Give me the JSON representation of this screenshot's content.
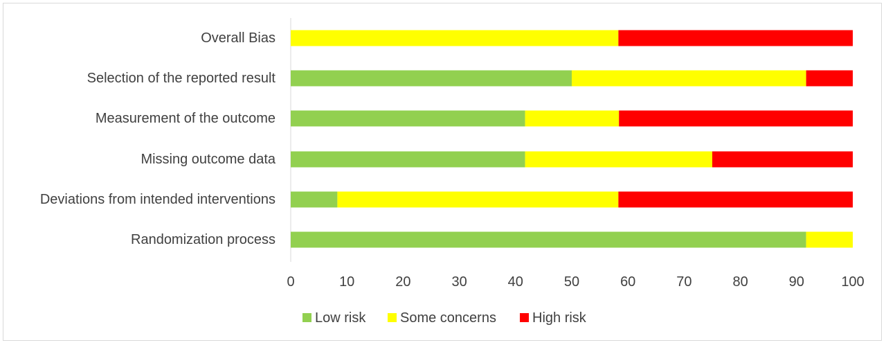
{
  "chart_data": {
    "type": "bar",
    "orientation": "horizontal",
    "stacked": true,
    "categories": [
      "Overall Bias",
      "Selection of the reported result",
      "Measurement of the outcome",
      "Missing outcome data",
      "Deviations from intended interventions",
      "Randomization process"
    ],
    "series": [
      {
        "name": "Low risk",
        "color": "#92d050",
        "values": [
          0,
          50,
          41.7,
          41.7,
          8.3,
          91.7
        ]
      },
      {
        "name": "Some concerns",
        "color": "#ffff00",
        "values": [
          58.3,
          41.7,
          16.7,
          33.3,
          50,
          8.3
        ]
      },
      {
        "name": "High risk",
        "color": "#ff0000",
        "values": [
          41.7,
          8.3,
          41.6,
          25,
          41.7,
          0
        ]
      }
    ],
    "xlim": [
      0,
      100
    ],
    "xticks": [
      "0",
      "10",
      "20",
      "30",
      "40",
      "50",
      "60",
      "70",
      "80",
      "90",
      "100"
    ],
    "grid": false,
    "legend_position": "bottom"
  }
}
